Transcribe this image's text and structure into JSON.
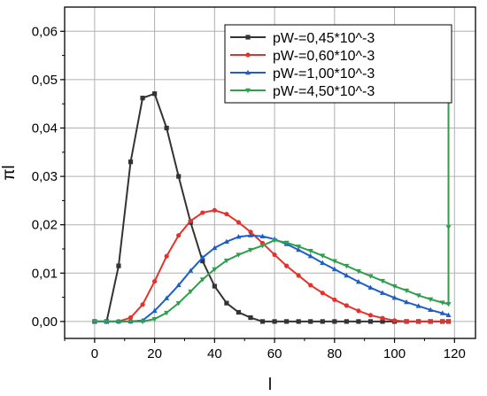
{
  "chart_data": {
    "type": "line",
    "title": "",
    "xlabel": "l",
    "ylabel": "πl",
    "xlim": [
      -10,
      127
    ],
    "ylim": [
      -0.0035,
      0.065
    ],
    "xticks": [
      0,
      20,
      40,
      60,
      80,
      100,
      120
    ],
    "xtick_labels": [
      "0",
      "20",
      "40",
      "60",
      "80",
      "100",
      "120"
    ],
    "yticks": [
      0,
      0.01,
      0.02,
      0.03,
      0.04,
      0.05,
      0.06
    ],
    "ytick_labels": [
      "0,00",
      "0,01",
      "0,02",
      "0,03",
      "0,04",
      "0,05",
      "0,06"
    ],
    "grid": true,
    "legend_position": "top-right",
    "series": [
      {
        "name": "pW-=0,45*10^-3",
        "color": "#333333",
        "marker": "square",
        "x": [
          0,
          4,
          8,
          12,
          16,
          20,
          24,
          28,
          32,
          36,
          40,
          44,
          48,
          52,
          56,
          60,
          64,
          68,
          72,
          76,
          80,
          84,
          88,
          92,
          96,
          100,
          104,
          108,
          112,
          116,
          118
        ],
        "y": [
          0,
          0,
          0.0115,
          0.033,
          0.0462,
          0.0471,
          0.04,
          0.03,
          0.0205,
          0.0125,
          0.0073,
          0.0038,
          0.0019,
          0.0008,
          0,
          0,
          0,
          0,
          0,
          0,
          0,
          0,
          0,
          0,
          0,
          0,
          0,
          0,
          0,
          0,
          0
        ]
      },
      {
        "name": "pW-=0,60*10^-3",
        "color": "#e8302a",
        "marker": "circle",
        "x": [
          0,
          4,
          8,
          12,
          16,
          20,
          24,
          28,
          32,
          36,
          40,
          44,
          48,
          52,
          56,
          60,
          64,
          68,
          72,
          76,
          80,
          84,
          88,
          92,
          96,
          100,
          104,
          108,
          112,
          116,
          118
        ],
        "y": [
          0,
          0,
          0,
          0.0008,
          0.0035,
          0.0083,
          0.0135,
          0.0178,
          0.0208,
          0.0225,
          0.023,
          0.0222,
          0.0205,
          0.0185,
          0.0162,
          0.0138,
          0.0115,
          0.0095,
          0.0075,
          0.0059,
          0.0045,
          0.0033,
          0.0022,
          0.0013,
          0.0007,
          0.0002,
          0,
          0,
          0,
          0,
          0
        ]
      },
      {
        "name": "pW-=1,00*10^-3",
        "color": "#1d5fc6",
        "marker": "triangle-up",
        "x": [
          0,
          4,
          8,
          12,
          16,
          20,
          24,
          28,
          32,
          36,
          40,
          44,
          48,
          52,
          56,
          60,
          64,
          68,
          72,
          76,
          80,
          84,
          88,
          92,
          96,
          100,
          104,
          108,
          112,
          116,
          118
        ],
        "y": [
          0,
          0,
          0,
          0,
          0.0002,
          0.0022,
          0.0048,
          0.0075,
          0.0105,
          0.0132,
          0.0152,
          0.0165,
          0.0175,
          0.0178,
          0.0176,
          0.017,
          0.016,
          0.0148,
          0.0135,
          0.0121,
          0.0108,
          0.0095,
          0.0082,
          0.007,
          0.0059,
          0.0049,
          0.004,
          0.0032,
          0.0024,
          0.0017,
          0.0013
        ]
      },
      {
        "name": "pW-=4,50*10^-3",
        "color": "#2f9e4e",
        "marker": "triangle-down",
        "x": [
          0,
          4,
          8,
          12,
          16,
          20,
          24,
          28,
          32,
          36,
          40,
          44,
          48,
          52,
          56,
          60,
          64,
          68,
          72,
          76,
          80,
          84,
          88,
          92,
          96,
          100,
          104,
          108,
          112,
          116,
          118,
          118,
          118
        ],
        "y": [
          0,
          0,
          0,
          0,
          0,
          0.0005,
          0.0018,
          0.0038,
          0.0062,
          0.0087,
          0.0108,
          0.0126,
          0.0138,
          0.0148,
          0.0157,
          0.0168,
          0.0163,
          0.0155,
          0.0146,
          0.0136,
          0.0125,
          0.0115,
          0.0104,
          0.0094,
          0.0084,
          0.0073,
          0.0064,
          0.0054,
          0.0046,
          0.0039,
          0.0036,
          0.0195,
          0.0563
        ]
      }
    ]
  }
}
